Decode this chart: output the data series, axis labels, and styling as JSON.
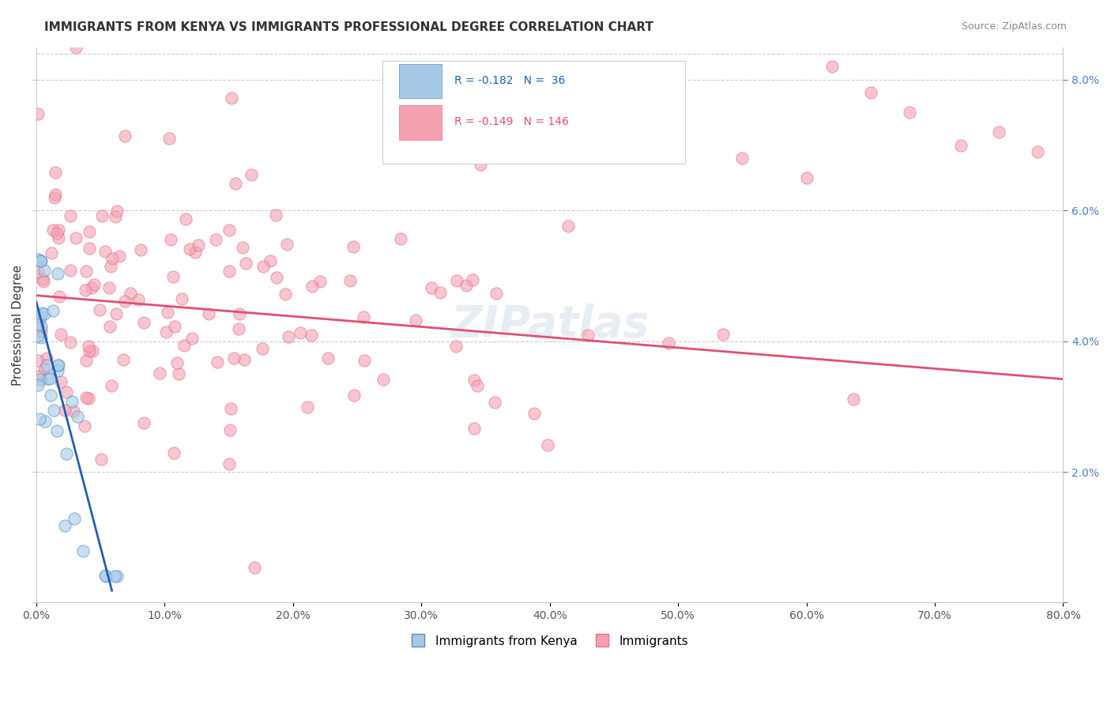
{
  "title": "IMMIGRANTS FROM KENYA VS IMMIGRANTS PROFESSIONAL DEGREE CORRELATION CHART",
  "source": "Source: ZipAtlas.com",
  "ylabel": "Professional Degree",
  "x_min": 0.0,
  "x_max": 0.8,
  "y_min": 0.0,
  "y_max": 0.085,
  "x_ticks": [
    0.0,
    0.1,
    0.2,
    0.3,
    0.4,
    0.5,
    0.6,
    0.7,
    0.8
  ],
  "y_ticks": [
    0.0,
    0.02,
    0.04,
    0.06,
    0.08
  ],
  "x_tick_labels": [
    "0.0%",
    "10.0%",
    "20.0%",
    "30.0%",
    "40.0%",
    "50.0%",
    "60.0%",
    "70.0%",
    "80.0%"
  ],
  "y_tick_labels_right": [
    "",
    "2.0%",
    "4.0%",
    "6.0%",
    "8.0%"
  ],
  "kenya_color": "#a8c8e8",
  "kenya_edge_color": "#5090c0",
  "imm_color": "#f4a0b0",
  "imm_edge_color": "#e87090",
  "blue_line_color": "#2060b0",
  "blue_dash_color": "#a0b8d0",
  "pink_line_color": "#e05070",
  "watermark": "ZIPatlas",
  "background_color": "#ffffff",
  "title_fontsize": 11,
  "axis_label_fontsize": 11,
  "tick_fontsize": 10,
  "legend_top_blue_text": "R = -0.182   N =  36",
  "legend_top_pink_text": "R = -0.149   N = 146",
  "legend_bottom_kenya": "Immigrants from Kenya",
  "legend_bottom_imm": "Immigrants"
}
